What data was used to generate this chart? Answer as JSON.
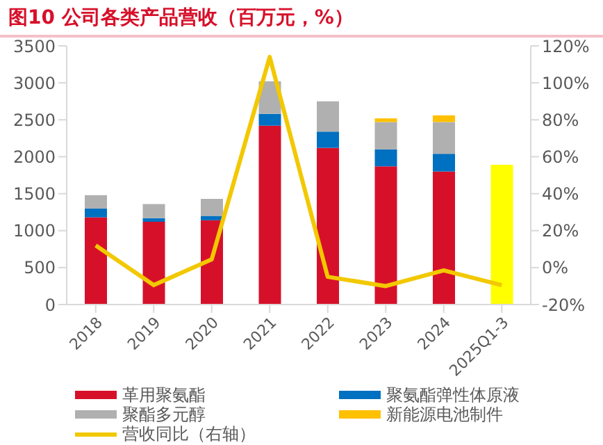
{
  "chart_data": {
    "type": "bar",
    "stacked": true,
    "title": "图10 公司各类产品营收（百万元，%）",
    "categories": [
      "2018",
      "2019",
      "2020",
      "2021",
      "2022",
      "2023",
      "2024",
      "2025Q1-3"
    ],
    "series": [
      {
        "name": "革用聚氨酯",
        "color": "#d7102a",
        "values": [
          1180,
          1120,
          1140,
          2420,
          2120,
          1870,
          1800,
          null
        ]
      },
      {
        "name": "聚氨酯弹性体原液",
        "color": "#0070c0",
        "values": [
          120,
          50,
          60,
          160,
          220,
          230,
          240,
          null
        ]
      },
      {
        "name": "聚酯多元醇",
        "color": "#b0b0b0",
        "values": [
          180,
          190,
          230,
          440,
          410,
          370,
          430,
          null
        ]
      },
      {
        "name": "新能源电池制件",
        "color": "#ffc000",
        "values": [
          null,
          null,
          null,
          null,
          null,
          50,
          90,
          null
        ]
      },
      {
        "color": "#ffff00",
        "values": [
          null,
          null,
          null,
          null,
          null,
          null,
          null,
          1890
        ]
      },
      {
        "name": "营收同比（右轴）",
        "type": "line",
        "axis": "y2",
        "color": "#f2c800",
        "values": [
          12,
          -9.5,
          4.5,
          114,
          -5,
          -10,
          -1.5,
          -9.5
        ]
      }
    ],
    "ylim": [
      0,
      3500
    ],
    "yticks": [
      0,
      500,
      1000,
      1500,
      2000,
      2500,
      3000,
      3500
    ],
    "y2lim": [
      -20,
      120
    ],
    "y2ticks": [
      {
        "value": -20,
        "label": "-20%"
      },
      {
        "value": 0,
        "label": "0%"
      },
      {
        "value": 20,
        "label": "20%"
      },
      {
        "value": 40,
        "label": "40%"
      },
      {
        "value": 60,
        "label": "60%"
      },
      {
        "value": 80,
        "label": "80%"
      },
      {
        "value": 100,
        "label": "100%"
      },
      {
        "value": 120,
        "label": "120%"
      }
    ],
    "grid": false,
    "legend": "bottom",
    "marker": "none"
  }
}
